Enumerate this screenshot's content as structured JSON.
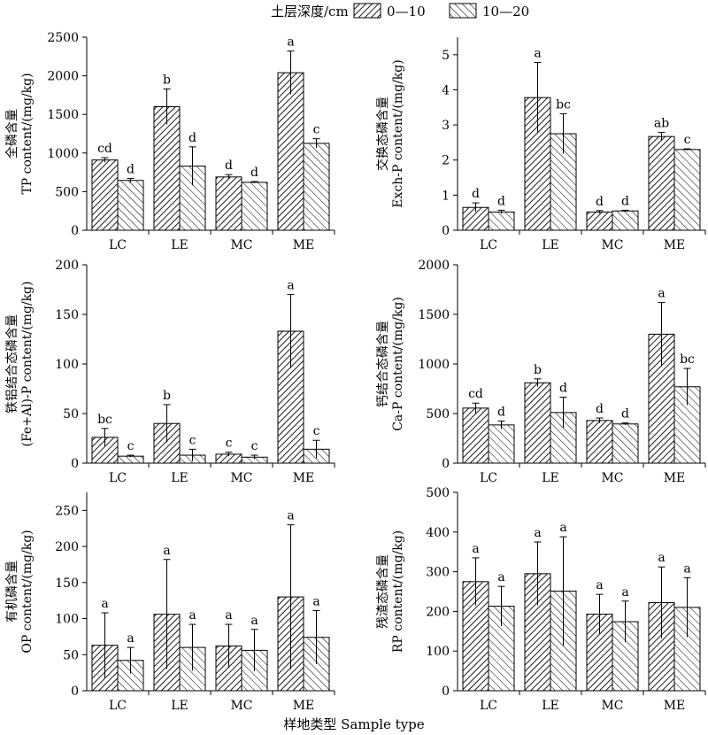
{
  "legend": {
    "title": "土层深度/cm",
    "items": [
      {
        "label": "0—10",
        "pattern": "dense-hatch"
      },
      {
        "label": "10—20",
        "pattern": "sparse-hatch"
      }
    ]
  },
  "x_axis_title": "样地类型 Sample type",
  "chart_data": [
    {
      "type": "bar",
      "ylabel_cn": "全磷含量",
      "ylabel_en": "TP content/(mg/kg)",
      "categories": [
        "LC",
        "LE",
        "MC",
        "ME"
      ],
      "ylim": [
        0,
        2500
      ],
      "yticks": [
        0,
        500,
        1000,
        1500,
        2000,
        2500
      ],
      "series": [
        {
          "name": "0—10",
          "values": [
            910,
            1600,
            690,
            2040
          ],
          "errors": [
            30,
            230,
            30,
            280
          ],
          "letters": [
            "cd",
            "b",
            "d",
            "a"
          ]
        },
        {
          "name": "10—20",
          "values": [
            645,
            830,
            620,
            1125
          ],
          "errors": [
            25,
            250,
            10,
            60
          ],
          "letters": [
            "d",
            "d",
            "d",
            "c"
          ]
        }
      ]
    },
    {
      "type": "bar",
      "ylabel_cn": "交换态磷含量",
      "ylabel_en": "Exch-P content/(mg/kg)",
      "categories": [
        "LC",
        "LE",
        "MC",
        "ME"
      ],
      "ylim": [
        0,
        5.5
      ],
      "yticks": [
        0,
        1,
        2,
        3,
        4,
        5
      ],
      "series": [
        {
          "name": "0—10",
          "values": [
            0.65,
            3.78,
            0.52,
            2.67
          ],
          "errors": [
            0.13,
            1.0,
            0.04,
            0.12
          ],
          "letters": [
            "d",
            "a",
            "d",
            "ab"
          ]
        },
        {
          "name": "10—20",
          "values": [
            0.52,
            2.75,
            0.55,
            2.3
          ],
          "errors": [
            0.05,
            0.57,
            0.02,
            0.02
          ],
          "letters": [
            "d",
            "bc",
            "d",
            "c"
          ]
        }
      ]
    },
    {
      "type": "bar",
      "ylabel_cn": "铁铝结合态磷含量",
      "ylabel_en": "(Fe+Al)-P content/(mg/kg)",
      "categories": [
        "LC",
        "LE",
        "MC",
        "ME"
      ],
      "ylim": [
        0,
        200
      ],
      "yticks": [
        0,
        50,
        100,
        150,
        200
      ],
      "series": [
        {
          "name": "0—10",
          "values": [
            26,
            40,
            9,
            133
          ],
          "errors": [
            9,
            19,
            2,
            37
          ],
          "letters": [
            "bc",
            "b",
            "c",
            "a"
          ]
        },
        {
          "name": "10—20",
          "values": [
            7,
            8,
            6,
            14
          ],
          "errors": [
            1,
            6,
            2,
            9
          ],
          "letters": [
            "c",
            "c",
            "c",
            "c"
          ]
        }
      ]
    },
    {
      "type": "bar",
      "ylabel_cn": "钙结合态磷含量",
      "ylabel_en": "Ca-P content/(mg/kg)",
      "categories": [
        "LC",
        "LE",
        "MC",
        "ME"
      ],
      "ylim": [
        0,
        2000
      ],
      "yticks": [
        0,
        500,
        1000,
        1500,
        2000
      ],
      "series": [
        {
          "name": "0—10",
          "values": [
            555,
            810,
            430,
            1300
          ],
          "errors": [
            50,
            40,
            25,
            320
          ],
          "letters": [
            "cd",
            "b",
            "d",
            "a"
          ]
        },
        {
          "name": "10—20",
          "values": [
            385,
            510,
            395,
            770
          ],
          "errors": [
            40,
            155,
            10,
            185
          ],
          "letters": [
            "d",
            "d",
            "d",
            "bc"
          ]
        }
      ]
    },
    {
      "type": "bar",
      "ylabel_cn": "有机磷含量",
      "ylabel_en": "OP content/(mg/kg)",
      "categories": [
        "LC",
        "LE",
        "MC",
        "ME"
      ],
      "ylim": [
        0,
        275
      ],
      "yticks": [
        0,
        50,
        100,
        150,
        200,
        250
      ],
      "series": [
        {
          "name": "0—10",
          "values": [
            63,
            106,
            62,
            130
          ],
          "errors": [
            45,
            76,
            30,
            100
          ],
          "letters": [
            "a",
            "a",
            "a",
            "a"
          ]
        },
        {
          "name": "10—20",
          "values": [
            42,
            60,
            56,
            74
          ],
          "errors": [
            18,
            32,
            29,
            37
          ],
          "letters": [
            "a",
            "a",
            "a",
            "a"
          ]
        }
      ]
    },
    {
      "type": "bar",
      "ylabel_cn": "残渣态磷含量",
      "ylabel_en": "RP content/(mg/kg)",
      "categories": [
        "LC",
        "LE",
        "MC",
        "ME"
      ],
      "ylim": [
        0,
        500
      ],
      "yticks": [
        0,
        100,
        200,
        300,
        400,
        500
      ],
      "series": [
        {
          "name": "0—10",
          "values": [
            275,
            295,
            193,
            222
          ],
          "errors": [
            60,
            80,
            50,
            90
          ],
          "letters": [
            "a",
            "a",
            "a",
            "a"
          ]
        },
        {
          "name": "10—20",
          "values": [
            213,
            251,
            174,
            210
          ],
          "errors": [
            50,
            137,
            52,
            75
          ],
          "letters": [
            "a",
            "a",
            "a",
            "a"
          ]
        }
      ]
    }
  ]
}
